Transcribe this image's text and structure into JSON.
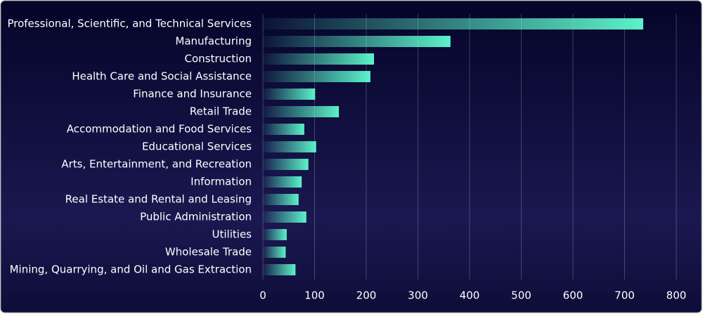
{
  "chart_data": {
    "type": "hbar",
    "categories": [
      "Professional, Scientific, and Technical Services",
      "Manufacturing",
      "Construction",
      "Health Care and Social Assistance",
      "Finance and Insurance",
      "Retail Trade",
      "Accommodation and Food Services",
      "Educational Services",
      "Arts, Entertainment, and Recreation",
      "Information",
      "Real Estate and Rental and Leasing",
      "Public Administration",
      "Utilities",
      "Wholesale Trade",
      "Mining, Quarrying, and Oil and Gas Extraction"
    ],
    "values": [
      736,
      363,
      215,
      208,
      101,
      147,
      80,
      103,
      88,
      75,
      69,
      84,
      46,
      44,
      63
    ],
    "color": "#5cf2c9",
    "xlim": [
      0,
      800
    ],
    "xticks": [
      0,
      100,
      200,
      300,
      400,
      500,
      600,
      700,
      800
    ],
    "grid": true
  }
}
